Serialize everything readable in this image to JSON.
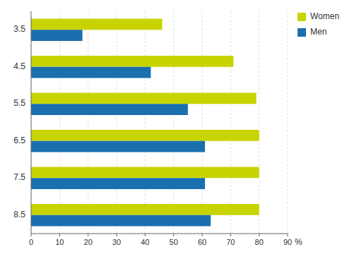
{
  "chart_data": {
    "type": "bar",
    "orientation": "horizontal",
    "categories": [
      "3.5",
      "4.5",
      "5.5",
      "6.5",
      "7.5",
      "8.5"
    ],
    "series": [
      {
        "name": "Women",
        "color": "#c8d400",
        "values": [
          46,
          71,
          79,
          80,
          80,
          80
        ]
      },
      {
        "name": "Men",
        "color": "#1a6faf",
        "values": [
          18,
          42,
          55,
          61,
          61,
          63
        ]
      }
    ],
    "xlabel": "%",
    "xlim": [
      0,
      90
    ],
    "xticks": [
      0,
      10,
      20,
      30,
      40,
      50,
      60,
      70,
      80,
      90
    ],
    "grid": true,
    "legend": "right"
  }
}
